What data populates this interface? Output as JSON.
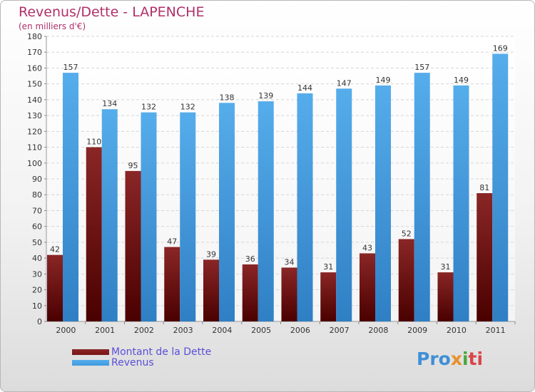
{
  "title": "Revenus/Dette - LAPENCHE",
  "subtitle": "(en milliers d'€)",
  "colors": {
    "debt": "#7a1414",
    "revenue": "#3f9be0",
    "title": "#b0306a",
    "legend_text": "#5a4fd8"
  },
  "chart_data": {
    "type": "bar",
    "categories": [
      "2000",
      "2001",
      "2002",
      "2003",
      "2004",
      "2005",
      "2006",
      "2007",
      "2008",
      "2009",
      "2010",
      "2011"
    ],
    "series": [
      {
        "name": "Montant de la Dette",
        "values": [
          42,
          110,
          95,
          47,
          39,
          36,
          34,
          31,
          43,
          52,
          31,
          81
        ]
      },
      {
        "name": "Revenus",
        "values": [
          157,
          134,
          132,
          132,
          138,
          139,
          144,
          147,
          149,
          157,
          149,
          169
        ]
      }
    ],
    "ylim": [
      0,
      180
    ],
    "yticks": [
      0,
      10,
      20,
      30,
      40,
      50,
      60,
      70,
      80,
      90,
      100,
      110,
      120,
      130,
      140,
      150,
      160,
      170,
      180
    ],
    "grid": true,
    "legend_position": "bottom-left"
  },
  "legend": {
    "debt_label": "Montant de la Dette",
    "revenue_label": "Revenus"
  },
  "logo": {
    "p1": "Pro",
    "p2": "x",
    "p3": "i",
    "p4": "ti"
  }
}
